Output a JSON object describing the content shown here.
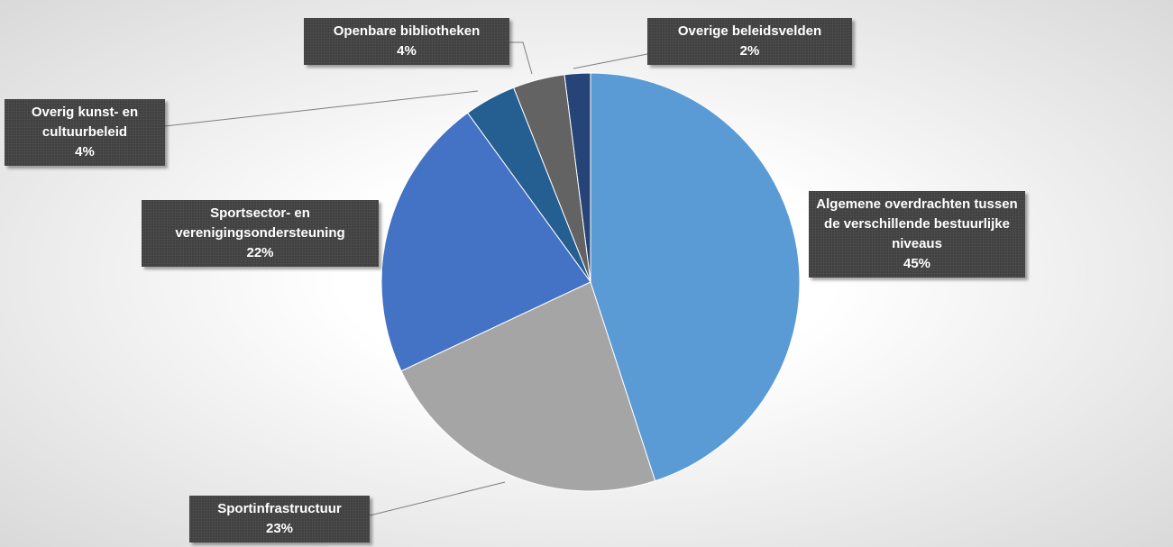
{
  "chart_data": {
    "type": "pie",
    "categories": [
      "Algemene overdrachten tussen de verschillende bestuurlijke niveaus",
      "Sportinfrastructuur",
      "Sportsector- en verenigingsondersteuning",
      "Overig kunst- en cultuurbeleid",
      "Openbare bibliotheken",
      "Overige beleidsvelden"
    ],
    "values": [
      45,
      23,
      22,
      4,
      4,
      2
    ],
    "value_labels": [
      "45%",
      "23%",
      "22%",
      "4%",
      "4%",
      "2%"
    ],
    "colors": [
      "#5b9bd5",
      "#a5a5a5",
      "#4472c4",
      "#255e91",
      "#636363",
      "#264478"
    ]
  }
}
